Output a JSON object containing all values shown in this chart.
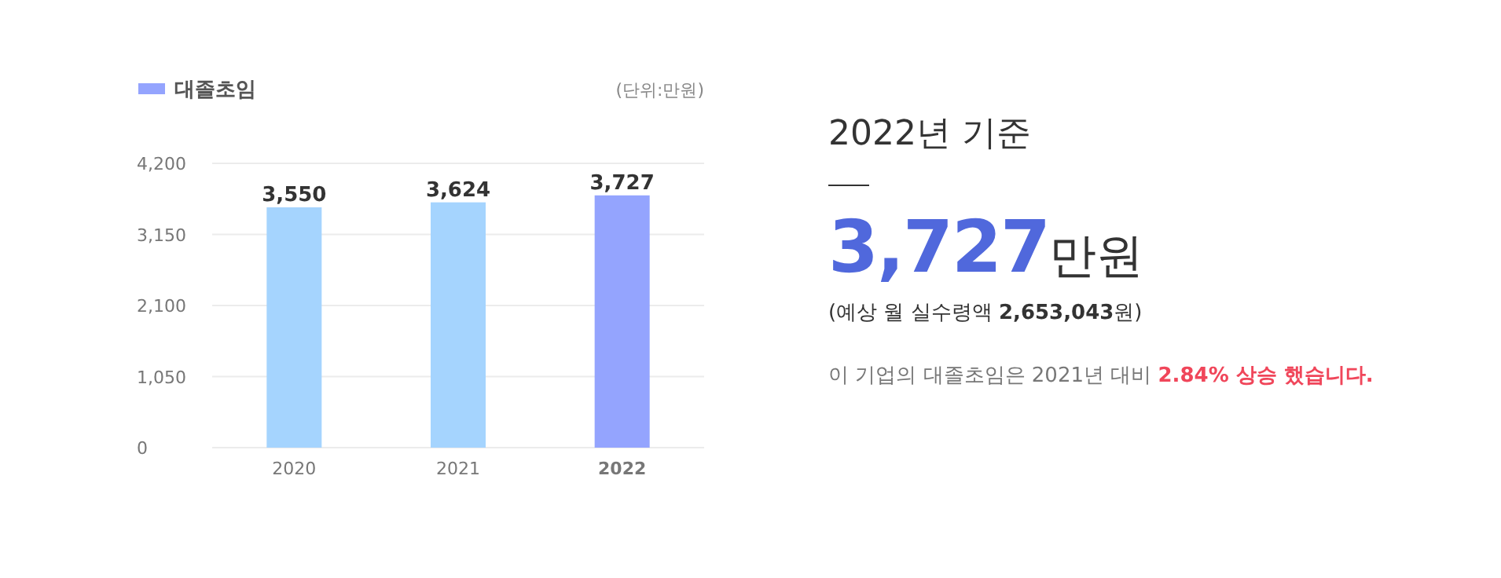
{
  "chart_data": [
    {
      "type": "bar",
      "categories": [
        "2020",
        "2021",
        "2022"
      ],
      "series": [
        {
          "name": "대졸초임",
          "color": "#94a4fe",
          "colors": [
            "#a5d4fe",
            "#a5d4fe",
            "#94a4fe"
          ],
          "values": [
            3550,
            3624,
            3727
          ],
          "value_labels": [
            "3,550",
            "3,624",
            "3,727"
          ]
        }
      ],
      "ylim": [
        0,
        4200
      ],
      "yticks": [
        0,
        {
          "value": 1050,
          "label": "1,050"
        },
        {
          "value": 2100,
          "label": "2,100"
        },
        {
          "value": 3150,
          "label": "3,150"
        },
        {
          "value": 4200,
          "label": "4,200"
        }
      ],
      "grid": "y",
      "legend": "top left",
      "annotations": [
        "(단위:만원)"
      ]
    },
    {
      "type": "other",
      "title": "2022년 기준",
      "annotations": [
        "3,727",
        "만원",
        "(예상 월 실수령액 ",
        "2,653,043",
        "원)",
        "이 기업의 대졸초임은 2021년 대비 ",
        "2.84% 상승 했습니다."
      ]
    }
  ]
}
